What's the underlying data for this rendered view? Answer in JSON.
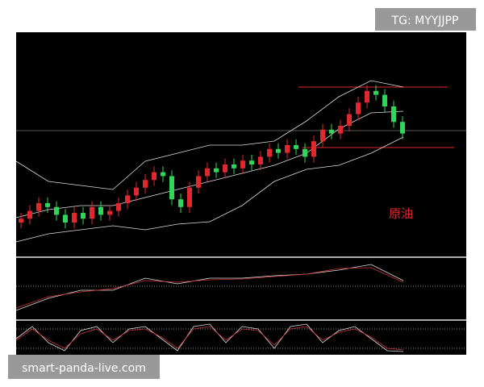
{
  "chart_data": {
    "type": "candlestick",
    "watermark": "TG: MYYJJPP",
    "annotation": "原油",
    "footer": "smart-panda-live.com",
    "ylim": [
      0,
      100
    ],
    "up_color": "#e0282e",
    "down_color": "#2fd65a",
    "open": [
      10,
      12,
      16,
      20,
      18,
      14,
      10,
      15,
      12,
      18,
      14,
      16,
      20,
      24,
      28,
      32,
      36,
      34,
      22,
      18,
      28,
      34,
      38,
      36,
      40,
      38,
      42,
      40,
      44,
      48,
      46,
      50,
      48,
      44,
      52,
      58,
      56,
      60,
      66,
      72,
      78,
      76,
      70,
      62
    ],
    "high": [
      15,
      19,
      23,
      23,
      21,
      17,
      18,
      18,
      21,
      21,
      19,
      23,
      27,
      31,
      35,
      39,
      39,
      37,
      25,
      31,
      37,
      41,
      41,
      43,
      43,
      45,
      45,
      47,
      51,
      51,
      53,
      53,
      51,
      55,
      61,
      61,
      63,
      69,
      75,
      81,
      81,
      79,
      73,
      65
    ],
    "low": [
      7,
      9,
      13,
      15,
      11,
      7,
      7,
      9,
      9,
      11,
      11,
      13,
      17,
      21,
      25,
      29,
      31,
      19,
      15,
      15,
      25,
      31,
      33,
      33,
      35,
      35,
      37,
      37,
      41,
      43,
      43,
      45,
      41,
      41,
      49,
      53,
      53,
      57,
      63,
      69,
      73,
      67,
      59,
      53
    ],
    "close": [
      12,
      16,
      20,
      18,
      14,
      10,
      15,
      12,
      18,
      14,
      16,
      20,
      24,
      28,
      32,
      36,
      34,
      22,
      18,
      28,
      34,
      38,
      36,
      40,
      38,
      42,
      40,
      44,
      48,
      46,
      50,
      48,
      44,
      52,
      58,
      56,
      60,
      66,
      72,
      78,
      76,
      70,
      62,
      56
    ]
  }
}
